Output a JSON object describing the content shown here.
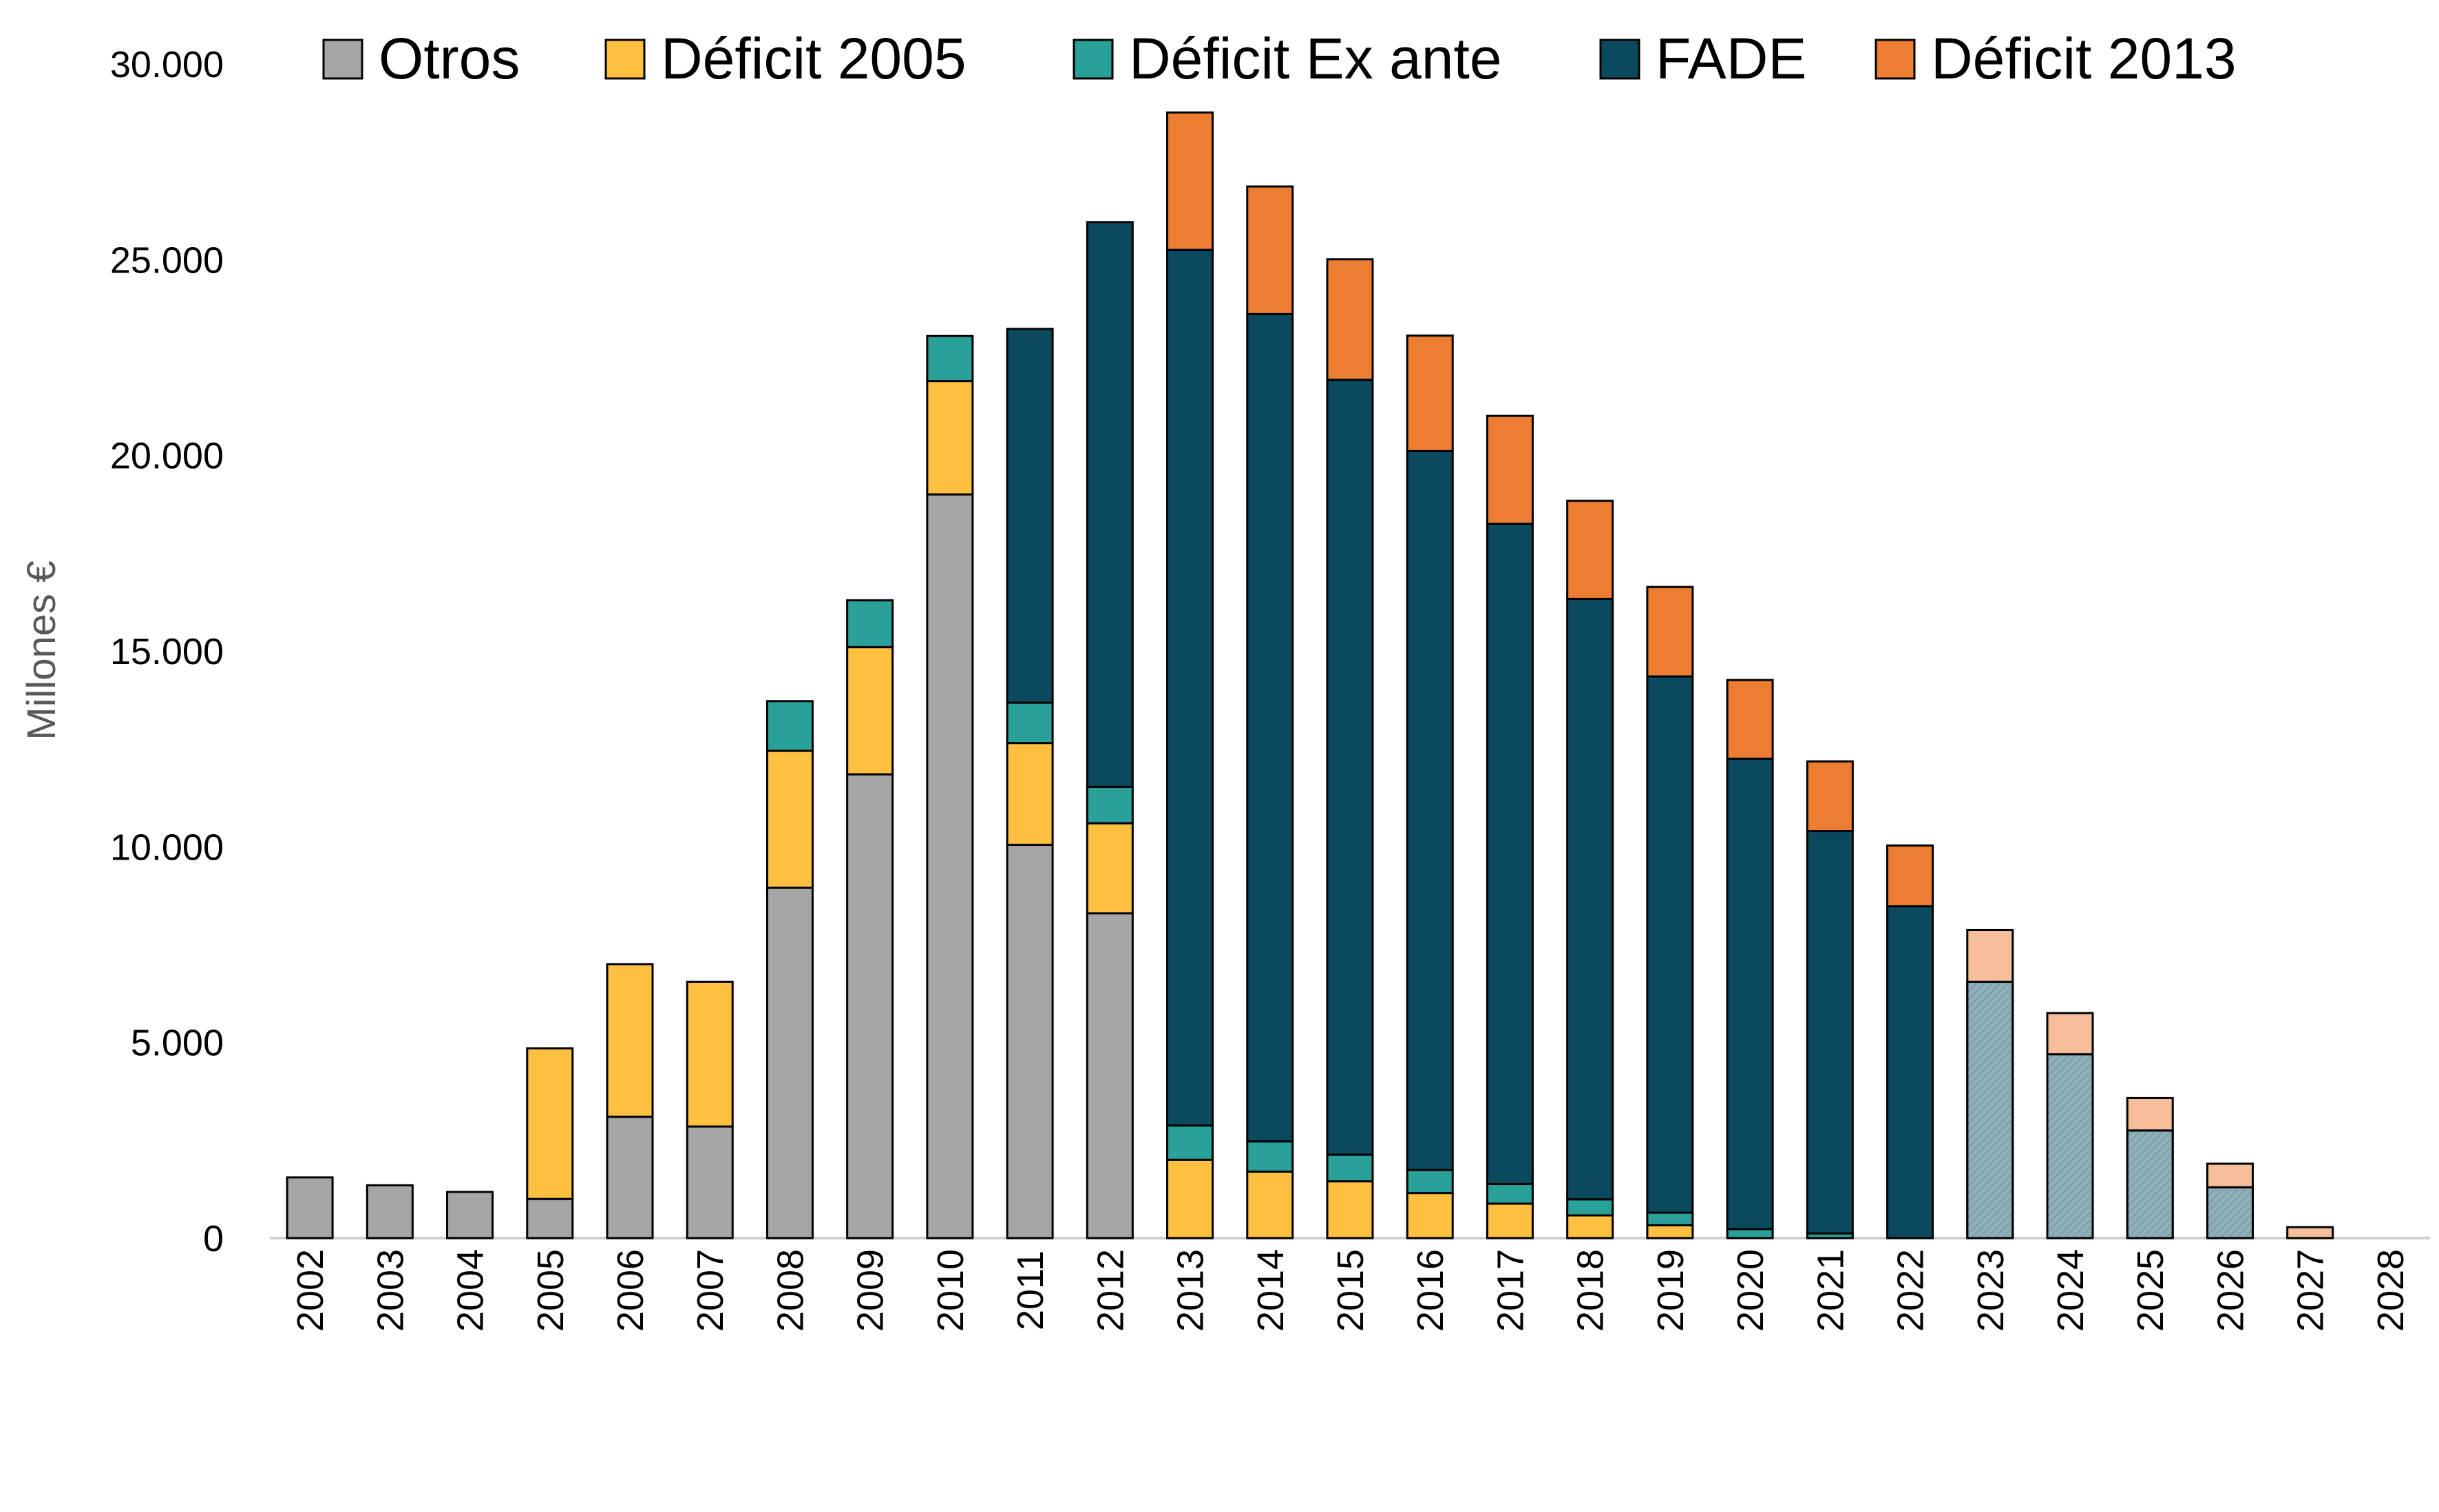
{
  "chart_data": {
    "type": "bar",
    "stacked": true,
    "title": "",
    "xlabel": "",
    "ylabel": "Millones €",
    "ylim": [
      0,
      30000
    ],
    "y_ticks": [
      0,
      5000,
      10000,
      15000,
      20000,
      25000,
      30000
    ],
    "y_tick_labels": [
      "0",
      "5.000",
      "10.000",
      "15.000",
      "20.000",
      "25.000",
      "30.000"
    ],
    "grid": false,
    "legend_position": "top",
    "categories": [
      "2002",
      "2003",
      "2004",
      "2005",
      "2006",
      "2007",
      "2008",
      "2009",
      "2010",
      "2011",
      "2012",
      "2013",
      "2014",
      "2015",
      "2016",
      "2017",
      "2018",
      "2019",
      "2020",
      "2021",
      "2022",
      "2023",
      "2024",
      "2025",
      "2026",
      "2027",
      "2028"
    ],
    "series": [
      {
        "name": "Otros",
        "color": "#A6A6A6",
        "values": [
          1550,
          1350,
          1180,
          1000,
          3100,
          2850,
          8950,
          11850,
          19000,
          10050,
          8300,
          0,
          0,
          0,
          0,
          0,
          0,
          0,
          0,
          0,
          0,
          6550,
          4700,
          2750,
          1300,
          0,
          0
        ]
      },
      {
        "name": "Déficit 2005",
        "color": "#FFBF40",
        "values": [
          0,
          0,
          0,
          3850,
          3900,
          3700,
          3500,
          3250,
          2900,
          2600,
          2300,
          2000,
          1700,
          1450,
          1150,
          880,
          580,
          330,
          0,
          0,
          0,
          0,
          0,
          0,
          0,
          0,
          0
        ]
      },
      {
        "name": "Déficit Ex ante",
        "color": "#2AA198",
        "values": [
          0,
          0,
          0,
          0,
          0,
          0,
          1270,
          1200,
          1150,
          1030,
          930,
          880,
          770,
          680,
          590,
          500,
          410,
          320,
          230,
          120,
          0,
          0,
          0,
          0,
          0,
          0,
          0
        ]
      },
      {
        "name": "FADE",
        "color": "#0B4A5E",
        "values": [
          0,
          0,
          0,
          0,
          0,
          0,
          0,
          0,
          0,
          9550,
          14430,
          22370,
          21140,
          19800,
          18370,
          16870,
          15340,
          13700,
          12020,
          10280,
          8480,
          0,
          0,
          0,
          0,
          0,
          0
        ]
      },
      {
        "name": "Déficit 2013",
        "color": "#ED7D31",
        "values": [
          0,
          0,
          0,
          0,
          0,
          0,
          0,
          0,
          0,
          0,
          0,
          3510,
          3260,
          3080,
          2950,
          2760,
          2510,
          2290,
          2010,
          1780,
          1550,
          1320,
          1050,
          830,
          600,
          280,
          0
        ]
      }
    ],
    "projected_from_category": "2023",
    "projected_colors": {
      "Otros": "#8FAFBA",
      "Déficit 2013": "#F6BE9A"
    }
  }
}
